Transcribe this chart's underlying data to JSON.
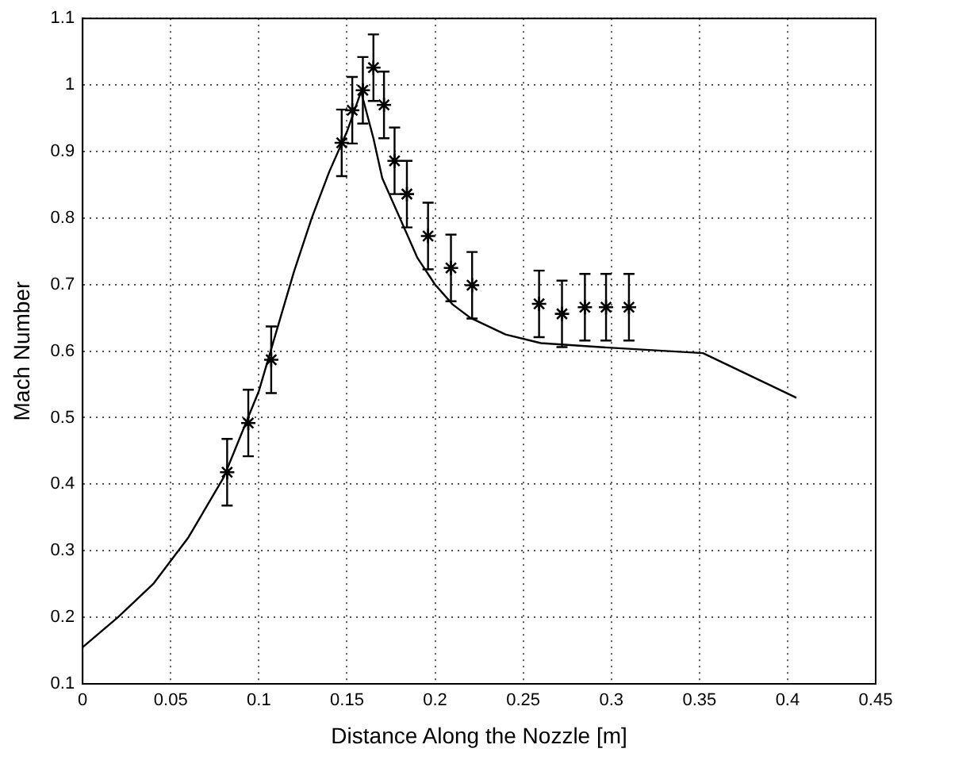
{
  "chart_data": {
    "type": "scatter",
    "xlabel": "Distance Along the Nozzle [m]",
    "ylabel": "Mach Number",
    "xlim": [
      0,
      0.45
    ],
    "xticks": [
      0,
      0.05,
      0.1,
      0.15,
      0.2,
      0.25,
      0.3,
      0.35,
      0.4,
      0.45
    ],
    "ylim": [
      0.1,
      1.1
    ],
    "yticks": [
      0.1,
      0.2,
      0.3,
      0.4,
      0.5,
      0.6,
      0.7,
      0.8,
      0.9,
      1,
      1.1
    ],
    "grid": true,
    "legend": false,
    "series": [
      {
        "type": "line",
        "color": "#000000",
        "marker": "none",
        "x": [
          0,
          0.02,
          0.04,
          0.06,
          0.08,
          0.1,
          0.12,
          0.13,
          0.14,
          0.15,
          0.158,
          0.165,
          0.17,
          0.18,
          0.19,
          0.2,
          0.21,
          0.22,
          0.24,
          0.26,
          0.3,
          0.352,
          0.405
        ],
        "values": [
          0.155,
          0.2,
          0.25,
          0.32,
          0.41,
          0.54,
          0.72,
          0.8,
          0.87,
          0.93,
          0.99,
          0.92,
          0.86,
          0.8,
          0.74,
          0.7,
          0.67,
          0.65,
          0.625,
          0.612,
          0.605,
          0.597,
          0.53
        ]
      },
      {
        "type": "scatter",
        "color": "#000000",
        "marker": "cross",
        "x": [
          0.082,
          0.094,
          0.107,
          0.147,
          0.153,
          0.159,
          0.165,
          0.171,
          0.177,
          0.184,
          0.196,
          0.209,
          0.221,
          0.259,
          0.272,
          0.285,
          0.297,
          0.31
        ],
        "values": [
          0.418,
          0.492,
          0.587,
          0.913,
          0.962,
          0.992,
          1.026,
          0.97,
          0.886,
          0.836,
          0.773,
          0.725,
          0.699,
          0.671,
          0.656,
          0.666,
          0.666,
          0.666
        ],
        "errors": [
          0.05,
          0.05,
          0.05,
          0.05,
          0.05,
          0.05,
          0.05,
          0.05,
          0.05,
          0.05,
          0.05,
          0.05,
          0.05,
          0.05,
          0.05,
          0.05,
          0.05,
          0.05
        ]
      }
    ]
  }
}
